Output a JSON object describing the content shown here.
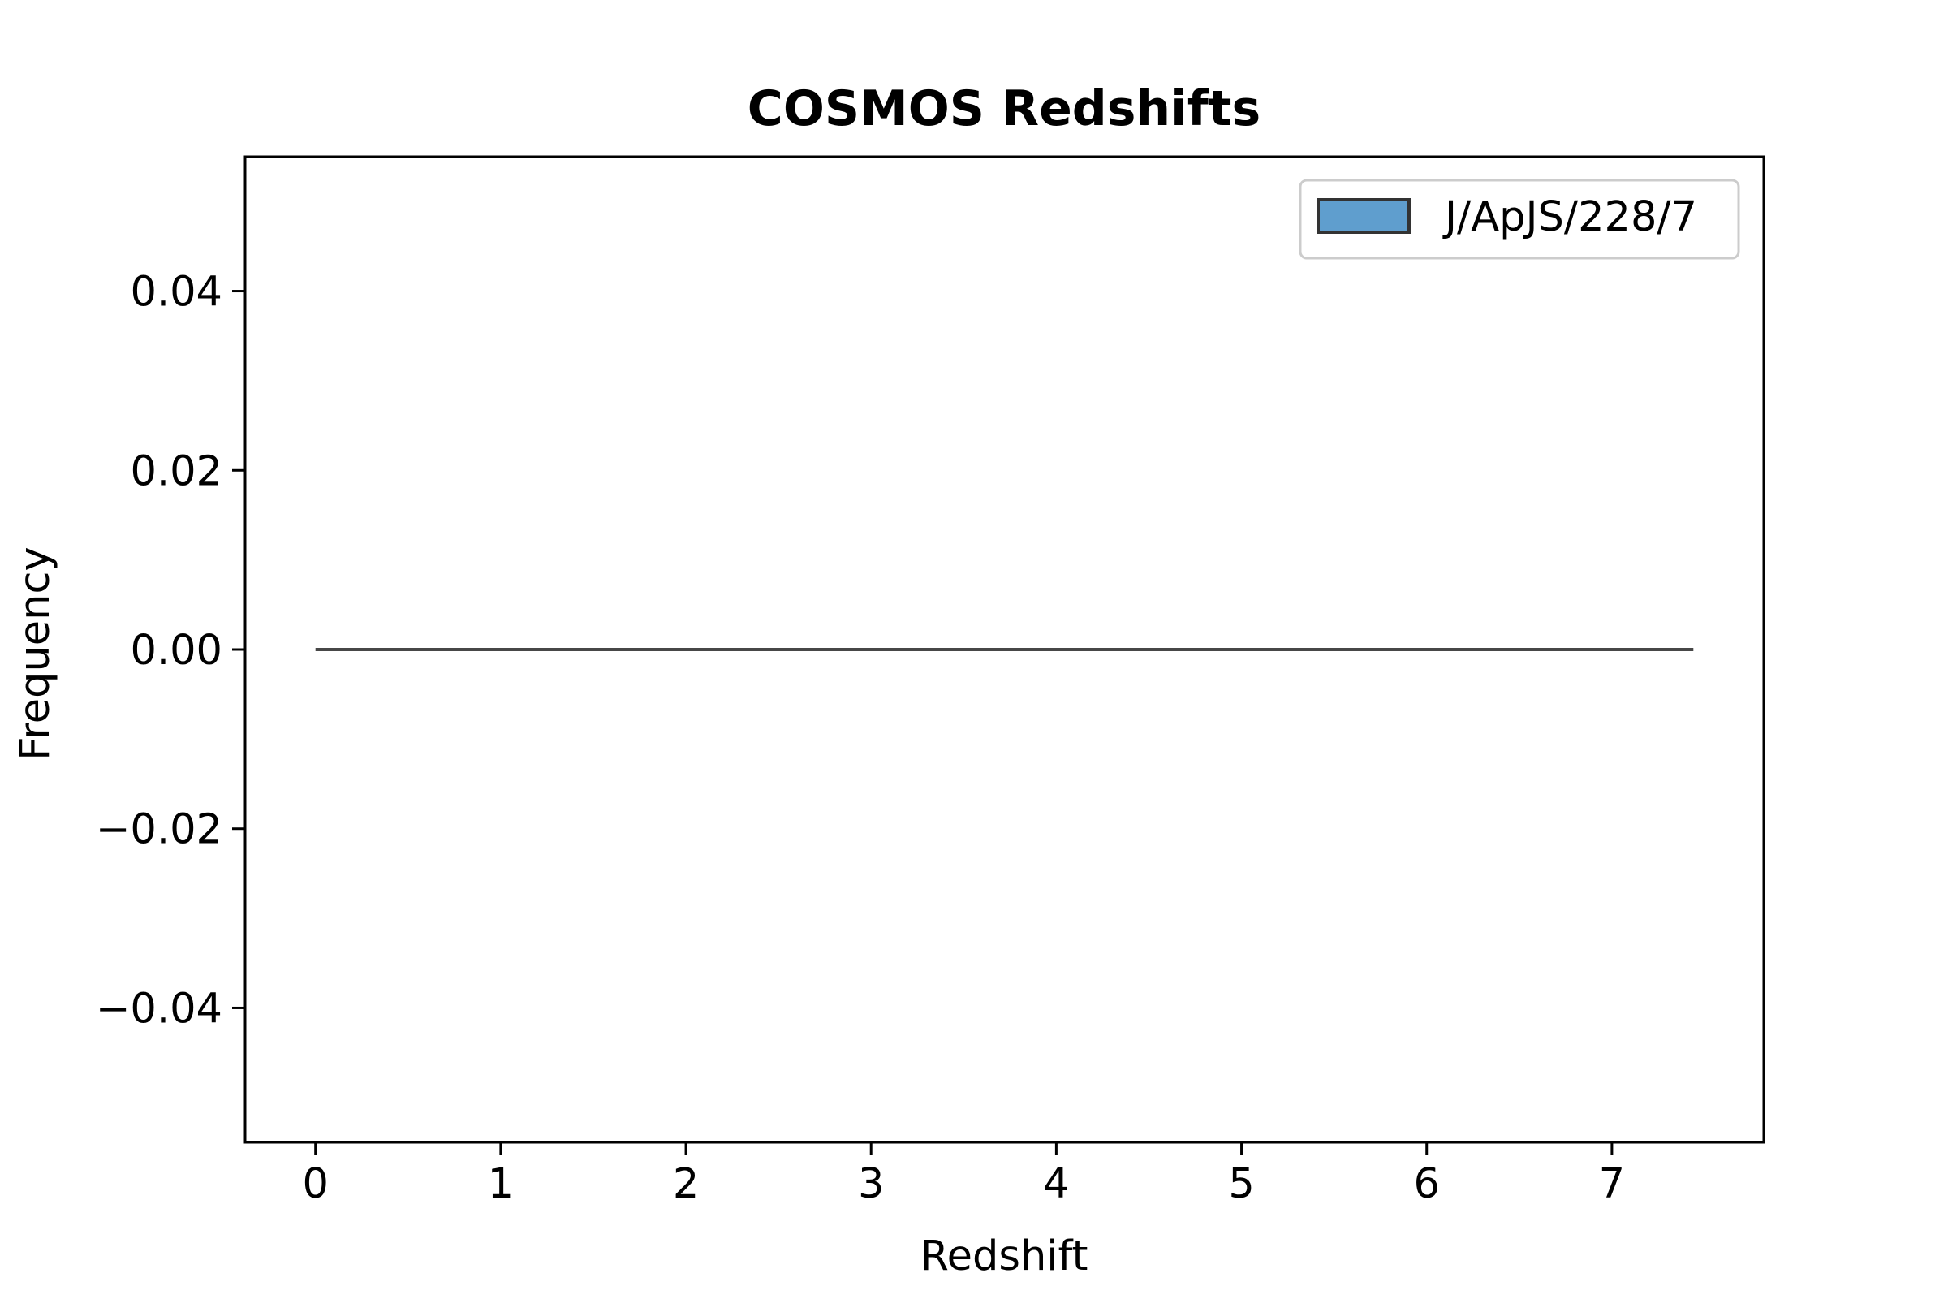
{
  "chart_data": {
    "type": "bar",
    "title": "COSMOS Redshifts",
    "xlabel": "Redshift",
    "ylabel": "Frequency",
    "xlim": [
      -0.38,
      7.82
    ],
    "ylim": [
      -0.055,
      0.055
    ],
    "x_ticks": [
      0,
      1,
      2,
      3,
      4,
      5,
      6,
      7
    ],
    "x_tick_labels": [
      "0",
      "1",
      "2",
      "3",
      "4",
      "5",
      "6",
      "7"
    ],
    "y_ticks": [
      -0.04,
      -0.02,
      0.0,
      0.02,
      0.04
    ],
    "y_tick_labels": [
      "−0.04",
      "−0.02",
      "0.00",
      "0.02",
      "0.04"
    ],
    "series": [
      {
        "name": "J/ApJS/228/7",
        "color": "#5f9ece",
        "edge_color": "#333333",
        "bin_range": [
          0.0,
          7.44
        ],
        "values": [
          0.0
        ]
      }
    ],
    "legend_position": "top-right",
    "grid": false
  }
}
